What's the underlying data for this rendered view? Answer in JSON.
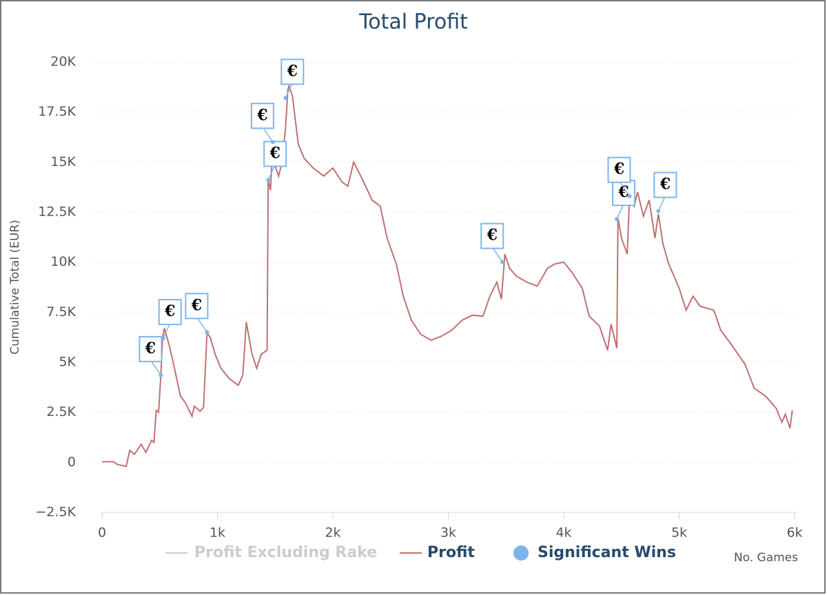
{
  "chart_data": {
    "type": "line",
    "title": "Total Profit",
    "x_label": "No. Games",
    "y_label": "Cumulative Total (EUR)",
    "xlim": [
      0,
      6000
    ],
    "ylim": [
      -2500,
      20000
    ],
    "xticks": [
      0,
      {
        "value": 1000,
        "label": "1k"
      },
      {
        "value": 2000,
        "label": "2k"
      },
      {
        "value": 3000,
        "label": "3k"
      },
      {
        "value": 4000,
        "label": "4k"
      },
      {
        "value": 5000,
        "label": "5k"
      },
      {
        "value": 6000,
        "label": "6k"
      }
    ],
    "yticks": [
      {
        "value": -2500,
        "label": "−2.5K"
      },
      0,
      {
        "value": 2500,
        "label": "2.5K"
      },
      {
        "value": 5000,
        "label": "5K"
      },
      {
        "value": 7500,
        "label": "7.5K"
      },
      {
        "value": 10000,
        "label": "10K"
      },
      {
        "value": 12500,
        "label": "12.5K"
      },
      {
        "value": 15000,
        "label": "15K"
      },
      {
        "value": 17500,
        "label": "17.5K"
      },
      {
        "value": 20000,
        "label": "20K"
      }
    ],
    "grid": true,
    "hidden_series": [
      {
        "name": "Profit Excluding Rake",
        "color": "#cccccc"
      }
    ],
    "series": [
      {
        "name": "Profit",
        "type": "line",
        "color": "#c07070",
        "x": [
          0,
          100,
          130,
          210,
          240,
          280,
          340,
          380,
          430,
          450,
          470,
          490,
          510,
          525,
          540,
          580,
          620,
          680,
          720,
          780,
          800,
          850,
          880,
          910,
          940,
          980,
          1030,
          1100,
          1180,
          1220,
          1250,
          1300,
          1340,
          1380,
          1430,
          1440,
          1460,
          1480,
          1500,
          1530,
          1560,
          1590,
          1610,
          1620,
          1650,
          1700,
          1750,
          1830,
          1920,
          2000,
          2080,
          2130,
          2180,
          2250,
          2340,
          2410,
          2470,
          2550,
          2610,
          2680,
          2760,
          2850,
          2940,
          3030,
          3120,
          3210,
          3300,
          3360,
          3420,
          3460,
          3490,
          3530,
          3590,
          3680,
          3770,
          3860,
          3920,
          4000,
          4070,
          4160,
          4220,
          4310,
          4380,
          4410,
          4460,
          4470,
          4500,
          4550,
          4570,
          4610,
          4640,
          4690,
          4740,
          4790,
          4820,
          4860,
          4910,
          5000,
          5060,
          5120,
          5180,
          5300,
          5360,
          5450,
          5570,
          5650,
          5750,
          5840,
          5890,
          5920,
          5960,
          5980
        ],
        "values": [
          30,
          30,
          -100,
          -200,
          600,
          400,
          900,
          500,
          1100,
          1000,
          2600,
          2500,
          4350,
          6200,
          6700,
          5900,
          4900,
          3300,
          3000,
          2300,
          2800,
          2550,
          2750,
          6500,
          6200,
          5400,
          4700,
          4200,
          3850,
          4350,
          7000,
          5400,
          4700,
          5400,
          5600,
          14100,
          13600,
          16000,
          14800,
          14300,
          15000,
          16700,
          18600,
          18800,
          18300,
          15900,
          15200,
          14700,
          14300,
          14700,
          14000,
          13800,
          15000,
          14200,
          13100,
          12800,
          11200,
          9900,
          8300,
          7100,
          6400,
          6100,
          6300,
          6600,
          7100,
          7350,
          7300,
          8300,
          9000,
          8150,
          10400,
          9700,
          9300,
          9000,
          8800,
          9700,
          9900,
          10000,
          9500,
          8700,
          7300,
          6800,
          5600,
          6900,
          5700,
          12200,
          11200,
          10400,
          13300,
          12800,
          13500,
          12300,
          13100,
          11200,
          12400,
          10900,
          9900,
          8700,
          7600,
          8300,
          7800,
          7600,
          6600,
          5900,
          4900,
          3700,
          3300,
          2700,
          2000,
          2400,
          1700,
          2600
        ]
      },
      {
        "name": "Significant Wins",
        "type": "scatter",
        "color": "#7cb5ec",
        "marker_label": "€",
        "x": [
          510,
          530,
          910,
          1440,
          1480,
          1590,
          3470,
          4460,
          4570,
          4820
        ],
        "values": [
          4350,
          6200,
          6500,
          14100,
          16000,
          18200,
          10000,
          12150,
          13300,
          12550
        ]
      }
    ]
  }
}
